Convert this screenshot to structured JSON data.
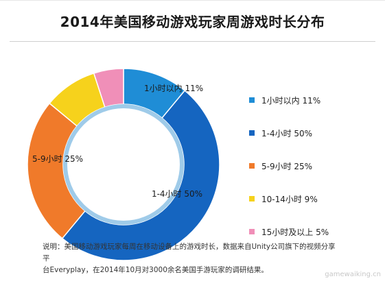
{
  "chart_data": {
    "type": "pie",
    "variant": "donut",
    "title": "2014年美国移动游戏玩家周游戏时长分布",
    "categories": [
      "1小时以内",
      "1-4小时",
      "5-9小时",
      "10-14小时",
      "15小时及以上"
    ],
    "values": [
      11,
      50,
      25,
      9,
      5
    ],
    "unit": "%",
    "data_labels": [
      "1小时以内 11%",
      "1-4小时 50%",
      "5-9小时 25%",
      "",
      ""
    ],
    "legend": {
      "position": "right",
      "entries": [
        "1小时以内 11%",
        "1-4小时 50%",
        "5-9小时 25%",
        "10-14小时 9%",
        "15小时及以上 5%"
      ]
    },
    "colors": [
      "#1f8dd6",
      "#1565c0",
      "#f07a2a",
      "#f6d21c",
      "#f08fb8"
    ]
  },
  "footnote": {
    "line1": "说明：美国移动游戏玩家每周在移动设备上的游戏时长，数据来自Unity公司旗下的视频分享平",
    "line2": "台Everyplay，在2014年10月对3000余名美国手游玩家的调研结果。"
  },
  "watermark": "gamewaiking.cn"
}
